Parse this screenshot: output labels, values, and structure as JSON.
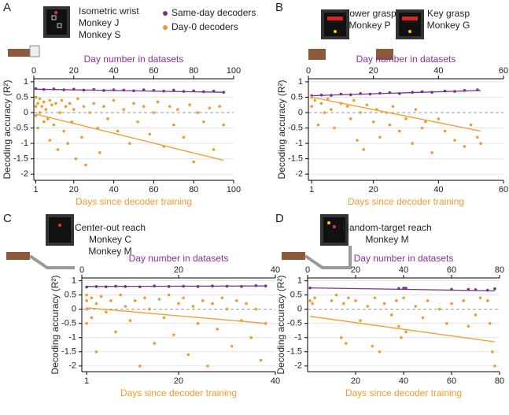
{
  "chart_data": [
    {
      "type": "scatter",
      "panel": "A",
      "texts": [
        "Isometric wrist",
        "Monkey J",
        "Monkey S"
      ],
      "x2label": "Day number in datasets",
      "xlabel": "Days since decoder training",
      "ylabel": "Decoding accuracy (R²)",
      "xlim": [
        0,
        100
      ],
      "xticks": [
        1,
        20,
        40,
        60,
        80,
        100
      ],
      "x2lim": [
        0,
        100
      ],
      "x2ticks": [
        0,
        20,
        40,
        60,
        80,
        100
      ],
      "ylim": [
        -2.2,
        1.1
      ],
      "yticks": [
        1,
        0.5,
        0,
        -0.5,
        -1,
        -1.5,
        -2
      ],
      "grid": true,
      "legend": "top-right",
      "series": [
        {
          "name": "Same-day decoders",
          "color": "#7b2f8e",
          "x": [
            1,
            5,
            10,
            15,
            20,
            25,
            30,
            35,
            40,
            45,
            50,
            55,
            60,
            65,
            70,
            75,
            80,
            85,
            90,
            95
          ],
          "values": [
            0.78,
            0.75,
            0.77,
            0.74,
            0.76,
            0.73,
            0.75,
            0.72,
            0.74,
            0.73,
            0.71,
            0.74,
            0.72,
            0.7,
            0.73,
            0.69,
            0.71,
            0.68,
            0.7,
            0.66
          ]
        },
        {
          "name": "Day-0 decoders",
          "color": "#f39a2b",
          "x": [
            1,
            1,
            1,
            2,
            2,
            3,
            3,
            4,
            5,
            5,
            6,
            7,
            8,
            8,
            9,
            10,
            11,
            12,
            13,
            14,
            15,
            16,
            17,
            18,
            19,
            20,
            21,
            22,
            24,
            25,
            26,
            28,
            30,
            32,
            33,
            35,
            37,
            40,
            42,
            45,
            48,
            50,
            52,
            55,
            58,
            60,
            62,
            65,
            68,
            70,
            72,
            75,
            78,
            80,
            82,
            85,
            88,
            90,
            93,
            95
          ],
          "values": [
            0.5,
            0.2,
            -0.1,
            0.3,
            -0.5,
            0.45,
            0.0,
            0.2,
            -0.3,
            0.35,
            0.1,
            -0.2,
            0.4,
            -0.9,
            0.25,
            -0.4,
            0.3,
            -1.2,
            0.0,
            0.4,
            -0.6,
            0.2,
            -1.0,
            0.3,
            -0.3,
            0.1,
            -1.5,
            0.45,
            -0.8,
            0.2,
            -1.7,
            0.0,
            0.3,
            -0.5,
            -1.3,
            0.2,
            -0.2,
            0.4,
            -0.6,
            0.1,
            -1.0,
            0.3,
            -0.3,
            0.2,
            -0.7,
            0.0,
            0.35,
            -1.1,
            0.2,
            -0.4,
            0.1,
            -0.8,
            0.25,
            -1.6,
            0.0,
            -0.3,
            0.15,
            -1.2,
            0.2,
            -0.4
          ]
        }
      ],
      "trend_lines": [
        {
          "color": "#7b2f8e",
          "x": [
            1,
            95
          ],
          "values": [
            0.76,
            0.66
          ]
        },
        {
          "color": "#f39a2b",
          "x": [
            1,
            95
          ],
          "values": [
            -0.05,
            -1.55
          ]
        }
      ]
    },
    {
      "type": "scatter",
      "panel": "B",
      "texts": [
        "Power grasp",
        "Monkey P",
        "Key grasp",
        "Monkey G"
      ],
      "x2label": "Day number in datasets",
      "xlabel": "Days since decoder training",
      "ylabel": "Decoding accuracy (R²)",
      "xlim": [
        0,
        60
      ],
      "xticks": [
        1,
        20,
        40,
        60
      ],
      "x2lim": [
        0,
        60
      ],
      "x2ticks": [
        0,
        20,
        40,
        60
      ],
      "ylim": [
        -2.2,
        1.1
      ],
      "yticks": [
        1,
        0.5,
        0,
        -0.5,
        -1,
        -1.5,
        -2
      ],
      "grid": true,
      "series": [
        {
          "color": "#7b2f8e",
          "x": [
            1,
            4,
            7,
            10,
            13,
            16,
            19,
            22,
            25,
            28,
            32,
            35,
            38,
            42,
            45,
            48,
            52
          ],
          "values": [
            0.55,
            0.57,
            0.56,
            0.6,
            0.58,
            0.62,
            0.6,
            0.63,
            0.65,
            0.62,
            0.66,
            0.68,
            0.66,
            0.7,
            0.69,
            0.72,
            0.74
          ]
        },
        {
          "color": "#f39a2b",
          "x": [
            1,
            1,
            2,
            3,
            4,
            5,
            6,
            7,
            8,
            10,
            12,
            13,
            14,
            15,
            16,
            17,
            18,
            20,
            21,
            22,
            24,
            25,
            26,
            28,
            30,
            32,
            33,
            35,
            36,
            38,
            40,
            42,
            45,
            48,
            50,
            52,
            53
          ],
          "values": [
            0.5,
            0.2,
            0.4,
            -0.4,
            0.3,
            0.0,
            0.45,
            0.1,
            -0.5,
            0.3,
            0.2,
            -0.2,
            0.4,
            -0.9,
            0.0,
            -1.2,
            0.25,
            -0.3,
            0.1,
            -0.8,
            0.0,
            -0.4,
            0.2,
            -0.6,
            -0.2,
            -1.0,
            0.1,
            -0.5,
            -0.3,
            -1.3,
            -0.2,
            -0.6,
            -0.9,
            -1.1,
            -0.4,
            -0.8,
            -1.0
          ]
        }
      ],
      "trend_lines": [
        {
          "color": "#7b2f8e",
          "x": [
            1,
            53
          ],
          "values": [
            0.55,
            0.72
          ]
        },
        {
          "color": "#f39a2b",
          "x": [
            1,
            53
          ],
          "values": [
            0.5,
            -0.6
          ]
        }
      ]
    },
    {
      "type": "scatter",
      "panel": "C",
      "texts": [
        "Center-out reach",
        "Monkey C",
        "Monkey M"
      ],
      "x2label": "Day number in datasets",
      "xlabel": "Days since decoder training",
      "ylabel": "Decoding accuracy (R²)",
      "xlim": [
        0,
        40
      ],
      "xticks": [
        1,
        20,
        40
      ],
      "x2lim": [
        0,
        40
      ],
      "x2ticks": [
        0,
        20,
        40
      ],
      "ylim": [
        -2.2,
        1.1
      ],
      "yticks": [
        1,
        0.5,
        0,
        -0.5,
        -1,
        -1.5,
        -2
      ],
      "grid": true,
      "series": [
        {
          "color": "#7b2f8e",
          "x": [
            1,
            3,
            5,
            7,
            9,
            12,
            15,
            18,
            21,
            24,
            27,
            30,
            33,
            36,
            38
          ],
          "values": [
            0.78,
            0.8,
            0.79,
            0.81,
            0.8,
            0.79,
            0.82,
            0.8,
            0.81,
            0.8,
            0.82,
            0.81,
            0.8,
            0.83,
            0.82
          ]
        },
        {
          "color": "#f39a2b",
          "x": [
            1,
            1,
            1,
            1,
            2,
            2,
            3,
            3,
            4,
            5,
            6,
            7,
            8,
            9,
            10,
            11,
            12,
            13,
            14,
            15,
            16,
            17,
            18,
            19,
            20,
            21,
            22,
            23,
            24,
            25,
            26,
            27,
            28,
            29,
            30,
            31,
            32,
            33,
            34,
            35,
            36,
            37,
            38
          ],
          "values": [
            0.5,
            0.0,
            -0.5,
            0.3,
            0.4,
            -0.3,
            0.2,
            -1.5,
            0.45,
            -0.1,
            0.3,
            -0.8,
            0.5,
            0.1,
            -0.4,
            0.3,
            -2.0,
            0.4,
            0.0,
            -1.2,
            0.35,
            -0.3,
            0.5,
            -0.9,
            0.2,
            0.4,
            -1.6,
            0.1,
            -0.5,
            0.3,
            -2.0,
            0.2,
            -0.7,
            0.4,
            0.0,
            -1.3,
            0.3,
            -0.4,
            0.2,
            -1.0,
            0.0,
            -1.8,
            -0.5
          ]
        }
      ],
      "trend_lines": [
        {
          "color": "#7b2f8e",
          "x": [
            1,
            38
          ],
          "values": [
            0.8,
            0.82
          ]
        },
        {
          "color": "#f39a2b",
          "x": [
            1,
            38
          ],
          "values": [
            0.05,
            -0.5
          ]
        }
      ]
    },
    {
      "type": "scatter",
      "panel": "D",
      "texts": [
        "Random-target reach",
        "Monkey M"
      ],
      "x2label": "Day number in datasets",
      "xlabel": "Days since decoder training",
      "ylabel": "Decoding accuracy (R²)",
      "xlim": [
        0,
        80
      ],
      "xticks": [
        20,
        40,
        60,
        80
      ],
      "x2lim": [
        0,
        80
      ],
      "x2ticks": [
        0,
        20,
        40,
        60,
        80
      ],
      "ylim": [
        -2.2,
        1.1
      ],
      "yticks": [
        1,
        0.5,
        0,
        -0.5,
        -1,
        -1.5,
        -2
      ],
      "grid": true,
      "series": [
        {
          "color": "#7b2f8e",
          "x": [
            1,
            38,
            40,
            41,
            60,
            67,
            70,
            75,
            78
          ],
          "values": [
            0.75,
            0.73,
            0.74,
            0.74,
            0.7,
            0.7,
            0.69,
            0.67,
            0.72
          ]
        },
        {
          "color": "#f39a2b",
          "x": [
            1,
            2,
            3,
            10,
            12,
            14,
            15,
            16,
            17,
            20,
            22,
            25,
            27,
            28,
            30,
            32,
            35,
            37,
            38,
            39,
            40,
            41,
            45,
            48,
            50,
            55,
            58,
            60,
            65,
            67,
            70,
            72,
            75,
            76,
            77,
            78
          ],
          "values": [
            0.3,
            0.2,
            0.4,
            0.3,
            0.5,
            -1.0,
            0.2,
            -1.2,
            0.4,
            0.3,
            -0.4,
            0.1,
            -1.3,
            0.4,
            -1.5,
            0.2,
            -0.2,
            0.3,
            -0.6,
            -1.0,
            0.4,
            -0.8,
            0.1,
            -0.3,
            0.3,
            0.0,
            -0.5,
            0.2,
            0.3,
            -0.6,
            -0.2,
            0.4,
            0.3,
            -0.5,
            -1.5,
            -2.0
          ]
        }
      ],
      "trend_lines": [
        {
          "color": "#7b2f8e",
          "x": [
            1,
            78
          ],
          "values": [
            0.75,
            0.65
          ]
        },
        {
          "color": "#f39a2b",
          "x": [
            1,
            78
          ],
          "values": [
            -0.25,
            -1.15
          ]
        }
      ]
    }
  ]
}
